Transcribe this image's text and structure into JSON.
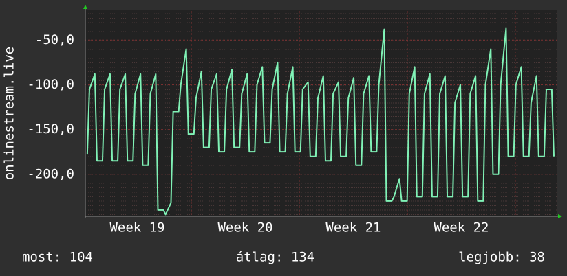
{
  "chart_data": {
    "type": "line",
    "y_label": "onlinestream.live",
    "xlim": [
      19.019,
      23.389
    ],
    "xticks": [
      {
        "value": 19.5,
        "label": "Week 19"
      },
      {
        "value": 20.5,
        "label": "Week 20"
      },
      {
        "value": 21.5,
        "label": "Week 21"
      },
      {
        "value": 22.5,
        "label": "Week 22"
      }
    ],
    "xgrid": [
      20,
      21,
      22,
      23
    ],
    "ylim": [
      -247,
      -16
    ],
    "yticks": [
      {
        "value": -50,
        "label": "-50,0"
      },
      {
        "value": -100,
        "label": "-100,0"
      },
      {
        "value": -150,
        "label": "-150,0"
      },
      {
        "value": -200,
        "label": "-200,0"
      }
    ],
    "grid": true,
    "series": [
      {
        "color": "#80f2b6",
        "x": [
          19.037,
          19.057,
          19.107,
          19.127,
          19.178,
          19.198,
          19.248,
          19.268,
          19.319,
          19.339,
          19.389,
          19.409,
          19.46,
          19.48,
          19.53,
          19.55,
          19.601,
          19.621,
          19.671,
          19.691,
          19.742,
          19.762,
          19.812,
          19.832,
          19.883,
          19.903,
          19.953,
          19.973,
          20.024,
          20.044,
          20.094,
          20.114,
          20.165,
          20.185,
          20.235,
          20.255,
          20.306,
          20.326,
          20.376,
          20.396,
          20.447,
          20.467,
          20.517,
          20.537,
          20.588,
          20.608,
          20.658,
          20.678,
          20.729,
          20.749,
          20.799,
          20.819,
          20.87,
          20.89,
          20.94,
          20.96,
          21.011,
          21.031,
          21.081,
          21.101,
          21.152,
          21.172,
          21.222,
          21.242,
          21.293,
          21.313,
          21.363,
          21.383,
          21.434,
          21.454,
          21.504,
          21.524,
          21.575,
          21.595,
          21.645,
          21.665,
          21.716,
          21.736,
          21.786,
          21.806,
          21.857,
          21.877,
          21.927,
          21.947,
          21.998,
          22.018,
          22.068,
          22.088,
          22.139,
          22.159,
          22.209,
          22.229,
          22.28,
          22.3,
          22.35,
          22.37,
          22.421,
          22.441,
          22.491,
          22.511,
          22.562,
          22.582,
          22.632,
          22.652,
          22.703,
          22.723,
          22.773,
          22.793,
          22.844,
          22.864,
          22.914,
          22.934,
          22.985,
          23.005,
          23.055,
          23.075,
          23.126,
          23.146,
          23.196,
          23.216,
          23.267,
          23.287,
          23.337,
          23.357
        ],
        "values": [
          -178,
          -105,
          -88,
          -185,
          -185,
          -105,
          -88,
          -185,
          -185,
          -105,
          -88,
          -185,
          -185,
          -110,
          -88,
          -190,
          -190,
          -110,
          -88,
          -240,
          -240,
          -245,
          -232,
          -130,
          -130,
          -100,
          -60,
          -155,
          -155,
          -115,
          -85,
          -170,
          -170,
          -105,
          -88,
          -175,
          -175,
          -105,
          -83,
          -170,
          -170,
          -110,
          -88,
          -175,
          -175,
          -100,
          -80,
          -165,
          -165,
          -105,
          -75,
          -175,
          -175,
          -110,
          -80,
          -175,
          -175,
          -105,
          -97,
          -180,
          -180,
          -115,
          -90,
          -185,
          -185,
          -110,
          -97,
          -180,
          -180,
          -115,
          -92,
          -190,
          -190,
          -110,
          -90,
          -175,
          -175,
          -100,
          -38,
          -230,
          -230,
          -225,
          -205,
          -230,
          -230,
          -110,
          -80,
          -225,
          -225,
          -110,
          -88,
          -225,
          -225,
          -110,
          -90,
          -225,
          -225,
          -120,
          -100,
          -225,
          -225,
          -110,
          -90,
          -230,
          -230,
          -100,
          -60,
          -200,
          -200,
          -100,
          -37,
          -180,
          -180,
          -100,
          -80,
          -180,
          -180,
          -120,
          -90,
          -180,
          -180,
          -105,
          -105,
          -180
        ]
      }
    ],
    "footer": {
      "current": "most: 104",
      "average": "átlag: 134",
      "best": "legjobb: 38"
    }
  }
}
